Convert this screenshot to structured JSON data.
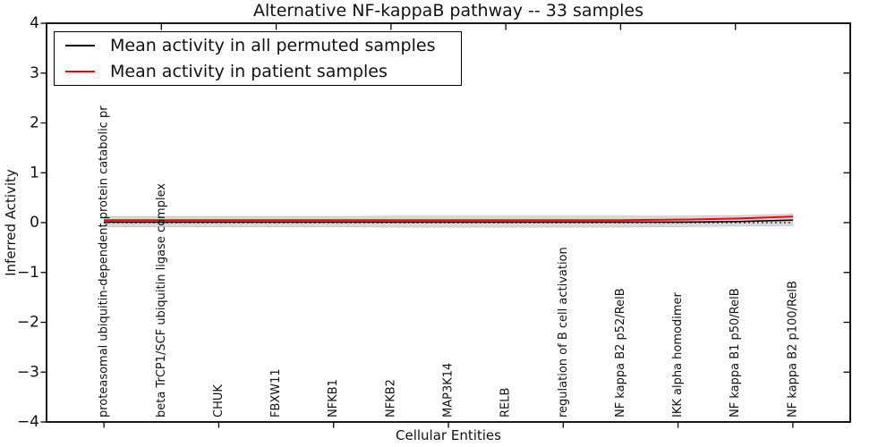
{
  "chart_data": {
    "type": "line",
    "title": "Alternative NF-kappaB pathway -- 33 samples",
    "xlabel": "Cellular Entities",
    "ylabel": "Inferred Activity",
    "ylim": [
      -4,
      4
    ],
    "xlim_units": [
      -1,
      13
    ],
    "grid": false,
    "yticks": [
      4,
      3,
      2,
      1,
      0,
      -1,
      -2,
      -3,
      -4
    ],
    "ytick_labels": [
      "4",
      "3",
      "2",
      "1",
      "0",
      "−1",
      "−2",
      "−3",
      "−4"
    ],
    "categories": [
      "proteasomal ubiquitin-dependent protein catabolic pr",
      "beta TrCP1/SCF ubiquitin ligase complex",
      "CHUK",
      "FBXW11",
      "NFKB1",
      "NFKB2",
      "MAP3K14",
      "RELB",
      "regulation of B cell activation",
      "NF kappa B2 p52/RelB",
      "IKK alpha homodimer",
      "NF kappa B1 p50/RelB",
      "NF kappa B2 p100/RelB"
    ],
    "series": [
      {
        "name": "Mean activity in all permuted samples",
        "color": "#000000",
        "style": "solid",
        "values": [
          0.01,
          0.01,
          0.01,
          0.01,
          0.01,
          0.01,
          0.01,
          0.01,
          0.01,
          0.01,
          0.01,
          0.02,
          0.05
        ]
      },
      {
        "name": "Mean activity in patient samples",
        "color": "#ff0000",
        "style": "solid",
        "values": [
          0.05,
          0.05,
          0.05,
          0.05,
          0.05,
          0.05,
          0.05,
          0.05,
          0.05,
          0.05,
          0.06,
          0.08,
          0.12
        ]
      }
    ],
    "band": {
      "name": "permuted-samples std band",
      "color": "#d9d9d9",
      "edge_color": "#c4c4c4",
      "upper": [
        0.12,
        0.12,
        0.12,
        0.12,
        0.12,
        0.13,
        0.13,
        0.13,
        0.13,
        0.13,
        0.13,
        0.14,
        0.17
      ],
      "lower": [
        -0.08,
        -0.08,
        -0.08,
        -0.08,
        -0.08,
        -0.09,
        -0.09,
        -0.09,
        -0.09,
        -0.09,
        -0.08,
        -0.07,
        -0.06
      ]
    },
    "zero_line": {
      "value": 0,
      "style": "dotted",
      "color": "#000000"
    },
    "legend": {
      "position": "upper left",
      "entries": [
        "Mean activity in all permuted samples",
        "Mean activity in patient samples"
      ]
    }
  }
}
